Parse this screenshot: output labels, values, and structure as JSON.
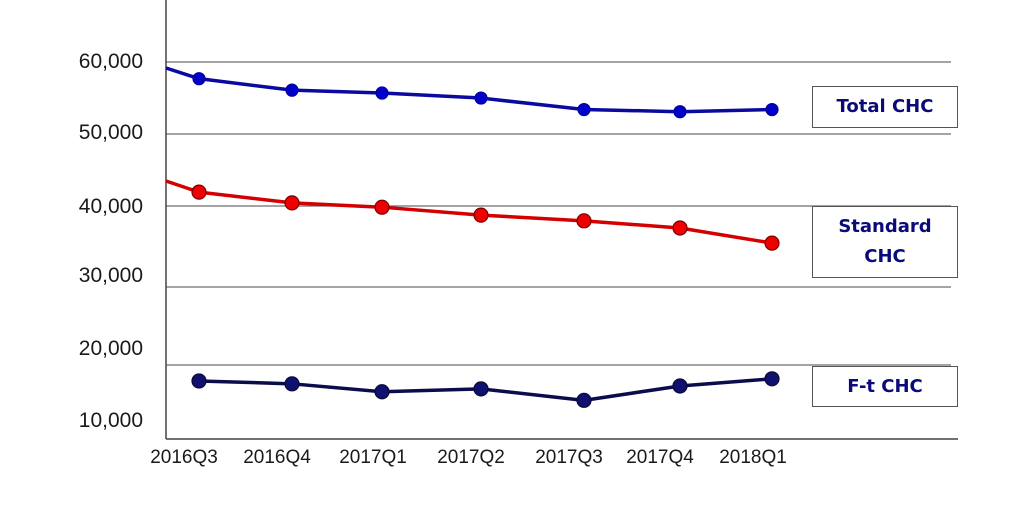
{
  "chart_data": {
    "type": "line",
    "title": "",
    "xlabel": "",
    "ylabel": "",
    "categories": [
      "2016Q3",
      "2016Q4",
      "2017Q1",
      "2017Q2",
      "2017Q3",
      "2017Q4",
      "2018Q1"
    ],
    "yticks": [
      "60,000",
      "50,000",
      "40,000",
      "30,000",
      "20,000",
      "10,000"
    ],
    "ylim": [
      10000,
      60000
    ],
    "grid": true,
    "legend_position": "right (inline labels)",
    "series": [
      {
        "name": "Total CHC",
        "color": "#0000b4",
        "values": [
          57400,
          55800,
          55400,
          54700,
          53100,
          52800,
          53100
        ]
      },
      {
        "name": "Standard CHC",
        "color": "#e00000",
        "values": [
          41600,
          40100,
          39500,
          38400,
          37600,
          36600,
          34500
        ]
      },
      {
        "name": "F-t CHC",
        "color": "#0c0c5c",
        "values": [
          15300,
          14900,
          13800,
          14200,
          12600,
          14600,
          15600
        ]
      }
    ]
  },
  "labels": {
    "total": "Total CHC",
    "standard_line1": "Standard",
    "standard_line2": "CHC",
    "ft": "F-t CHC"
  }
}
